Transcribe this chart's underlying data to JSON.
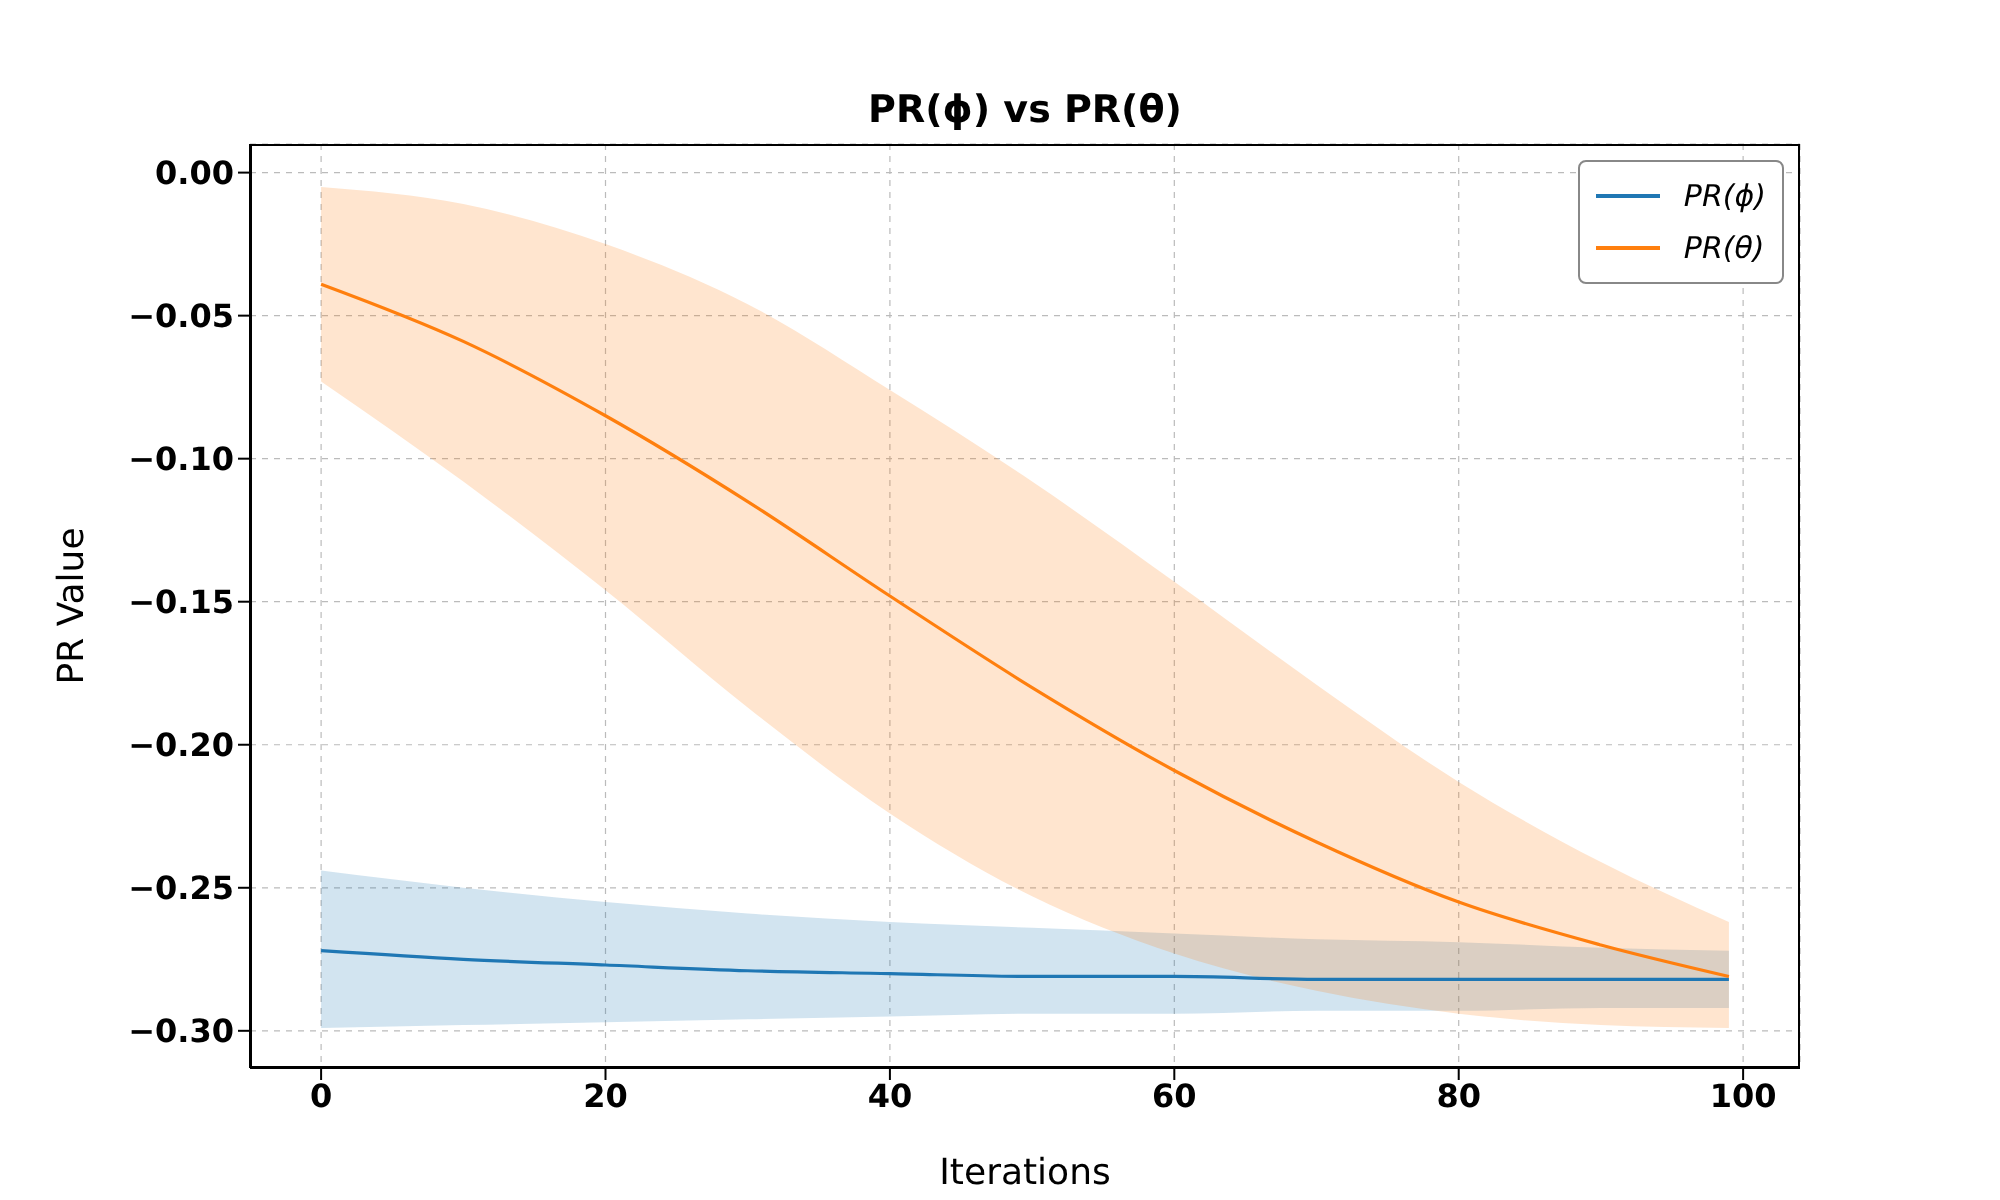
{
  "chart_data": {
    "type": "line",
    "title": "PR(ϕ) vs PR(θ)",
    "xlabel": "Iterations",
    "ylabel": "PR Value",
    "x": [
      0,
      10,
      20,
      30,
      40,
      50,
      60,
      70,
      80,
      90,
      99
    ],
    "series": [
      {
        "name": "PR(ϕ)",
        "color": "#1f77b4",
        "values": [
          -0.272,
          -0.275,
          -0.277,
          -0.279,
          -0.28,
          -0.281,
          -0.281,
          -0.282,
          -0.282,
          -0.282,
          -0.282
        ],
        "lower": [
          -0.299,
          -0.298,
          -0.297,
          -0.296,
          -0.295,
          -0.294,
          -0.294,
          -0.293,
          -0.293,
          -0.292,
          -0.292
        ],
        "upper": [
          -0.244,
          -0.25,
          -0.255,
          -0.259,
          -0.262,
          -0.264,
          -0.266,
          -0.268,
          -0.269,
          -0.271,
          -0.272
        ]
      },
      {
        "name": "PR(θ)",
        "color": "#ff7f0e",
        "values": [
          -0.039,
          -0.059,
          -0.085,
          -0.115,
          -0.148,
          -0.18,
          -0.209,
          -0.234,
          -0.255,
          -0.27,
          -0.281
        ],
        "lower": [
          -0.073,
          -0.108,
          -0.146,
          -0.187,
          -0.224,
          -0.253,
          -0.273,
          -0.286,
          -0.294,
          -0.298,
          -0.299
        ],
        "upper": [
          -0.005,
          -0.011,
          -0.025,
          -0.046,
          -0.076,
          -0.108,
          -0.143,
          -0.179,
          -0.213,
          -0.241,
          -0.262
        ]
      }
    ],
    "xlim": [
      -5,
      104
    ],
    "xticks": [
      0,
      20,
      40,
      60,
      80,
      100
    ],
    "ylim": [
      -0.313,
      0.01
    ],
    "yticks": [
      {
        "value": 0,
        "label": "0.00"
      },
      {
        "value": -0.05,
        "label": "−0.05"
      },
      {
        "value": -0.1,
        "label": "−0.10"
      },
      {
        "value": -0.15,
        "label": "−0.15"
      },
      {
        "value": -0.2,
        "label": "−0.20"
      },
      {
        "value": -0.25,
        "label": "−0.25"
      },
      {
        "value": -0.3,
        "label": "−0.30"
      }
    ],
    "grid": true,
    "legend": "top right",
    "marker": "none",
    "line_style": "solid"
  }
}
